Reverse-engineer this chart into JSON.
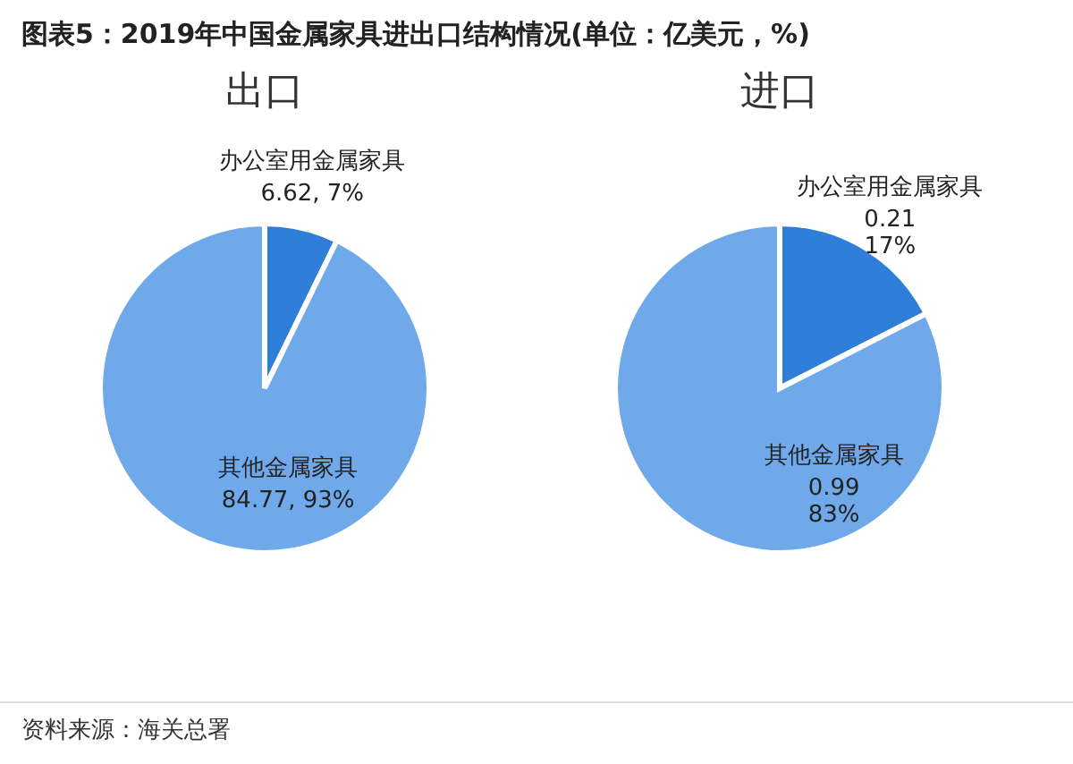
{
  "chart_data": [
    {
      "type": "pie",
      "title": "出口",
      "annotations": [
        "图表5：2019年中国金属家具进出口结构情况(单位：亿美元，%)"
      ],
      "categories": [
        "办公室用金属家具",
        "其他金属家具"
      ],
      "values": [
        6.62,
        84.77
      ],
      "colors": [
        "#2f7fd8",
        "#6fa9ea"
      ],
      "value_labels": [
        "6.62, 7%",
        "84.77, 93%"
      ]
    },
    {
      "type": "pie",
      "title": "进口",
      "annotations": [
        "资料来源：海关总署"
      ],
      "categories": [
        "办公室用金属家具",
        "其他金属家具"
      ],
      "values": [
        0.21,
        0.99
      ],
      "colors": [
        "#2f7fd8",
        "#6fa9ea"
      ],
      "value_labels": [
        "0.21\n17%",
        "0.99\n83%"
      ]
    }
  ]
}
